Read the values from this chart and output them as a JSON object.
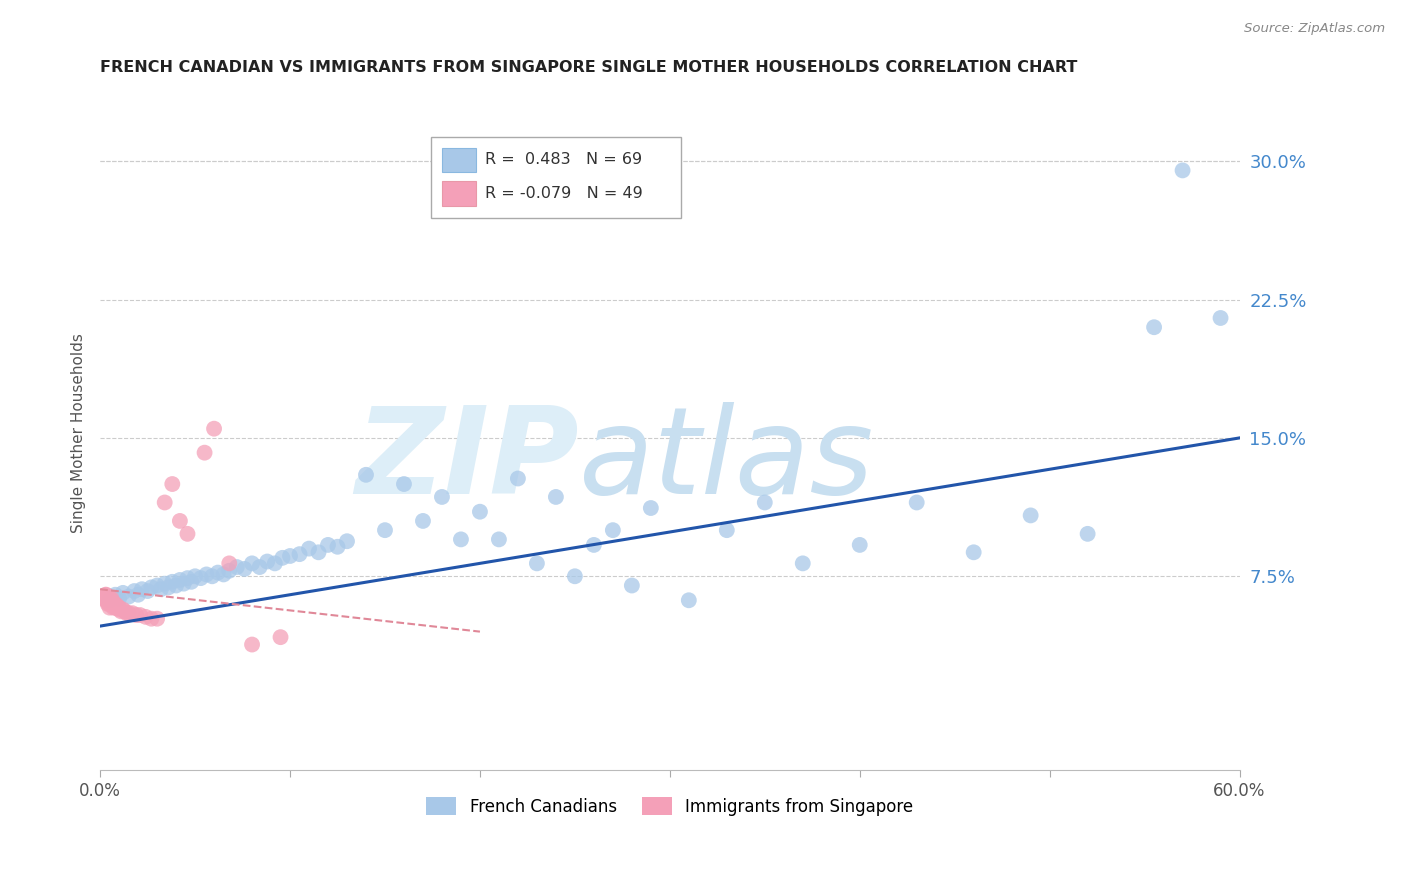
{
  "title": "FRENCH CANADIAN VS IMMIGRANTS FROM SINGAPORE SINGLE MOTHER HOUSEHOLDS CORRELATION CHART",
  "source": "Source: ZipAtlas.com",
  "ylabel": "Single Mother Households",
  "xlim": [
    0.0,
    0.6
  ],
  "ylim": [
    -0.03,
    0.335
  ],
  "yticks_right": [
    0.075,
    0.15,
    0.225,
    0.3
  ],
  "ytick_labels_right": [
    "7.5%",
    "15.0%",
    "22.5%",
    "30.0%"
  ],
  "blue_R": 0.483,
  "blue_N": 69,
  "pink_R": -0.079,
  "pink_N": 49,
  "blue_color": "#a8c8e8",
  "pink_color": "#f4a0b8",
  "blue_line_color": "#2255aa",
  "pink_line_color": "#e08898",
  "legend_label_blue": "French Canadians",
  "legend_label_pink": "Immigrants from Singapore",
  "background_color": "#ffffff",
  "grid_color": "#cccccc",
  "blue_x": [
    0.005,
    0.008,
    0.01,
    0.012,
    0.015,
    0.018,
    0.02,
    0.022,
    0.025,
    0.027,
    0.03,
    0.032,
    0.034,
    0.036,
    0.038,
    0.04,
    0.042,
    0.044,
    0.046,
    0.048,
    0.05,
    0.053,
    0.056,
    0.059,
    0.062,
    0.065,
    0.068,
    0.072,
    0.076,
    0.08,
    0.084,
    0.088,
    0.092,
    0.096,
    0.1,
    0.105,
    0.11,
    0.115,
    0.12,
    0.125,
    0.13,
    0.14,
    0.15,
    0.16,
    0.17,
    0.18,
    0.19,
    0.2,
    0.21,
    0.22,
    0.23,
    0.24,
    0.25,
    0.26,
    0.27,
    0.28,
    0.29,
    0.31,
    0.33,
    0.35,
    0.37,
    0.4,
    0.43,
    0.46,
    0.49,
    0.52,
    0.555,
    0.57,
    0.59
  ],
  "blue_y": [
    0.062,
    0.065,
    0.063,
    0.066,
    0.064,
    0.067,
    0.065,
    0.068,
    0.067,
    0.069,
    0.07,
    0.068,
    0.071,
    0.069,
    0.072,
    0.07,
    0.073,
    0.071,
    0.074,
    0.072,
    0.075,
    0.074,
    0.076,
    0.075,
    0.077,
    0.076,
    0.078,
    0.08,
    0.079,
    0.082,
    0.08,
    0.083,
    0.082,
    0.085,
    0.086,
    0.087,
    0.09,
    0.088,
    0.092,
    0.091,
    0.094,
    0.13,
    0.1,
    0.125,
    0.105,
    0.118,
    0.095,
    0.11,
    0.095,
    0.128,
    0.082,
    0.118,
    0.075,
    0.092,
    0.1,
    0.07,
    0.112,
    0.062,
    0.1,
    0.115,
    0.082,
    0.092,
    0.115,
    0.088,
    0.108,
    0.098,
    0.21,
    0.295,
    0.215
  ],
  "pink_x": [
    0.003,
    0.003,
    0.003,
    0.003,
    0.003,
    0.004,
    0.004,
    0.004,
    0.004,
    0.004,
    0.005,
    0.005,
    0.005,
    0.005,
    0.005,
    0.006,
    0.006,
    0.006,
    0.006,
    0.007,
    0.007,
    0.007,
    0.008,
    0.008,
    0.008,
    0.009,
    0.009,
    0.01,
    0.01,
    0.011,
    0.012,
    0.013,
    0.014,
    0.015,
    0.017,
    0.019,
    0.021,
    0.024,
    0.027,
    0.03,
    0.034,
    0.038,
    0.042,
    0.046,
    0.055,
    0.06,
    0.068,
    0.08,
    0.095
  ],
  "pink_y": [
    0.062,
    0.063,
    0.064,
    0.065,
    0.065,
    0.06,
    0.061,
    0.062,
    0.063,
    0.064,
    0.058,
    0.06,
    0.061,
    0.062,
    0.063,
    0.06,
    0.061,
    0.062,
    0.063,
    0.058,
    0.059,
    0.06,
    0.058,
    0.06,
    0.059,
    0.058,
    0.059,
    0.057,
    0.058,
    0.056,
    0.057,
    0.056,
    0.055,
    0.055,
    0.055,
    0.054,
    0.054,
    0.053,
    0.052,
    0.052,
    0.115,
    0.125,
    0.105,
    0.098,
    0.142,
    0.155,
    0.082,
    0.038,
    0.042
  ],
  "blue_trend_x0": 0.0,
  "blue_trend_y0": 0.048,
  "blue_trend_x1": 0.6,
  "blue_trend_y1": 0.15,
  "pink_trend_x0": 0.0,
  "pink_trend_y0": 0.068,
  "pink_trend_x1": 0.2,
  "pink_trend_y1": 0.045
}
